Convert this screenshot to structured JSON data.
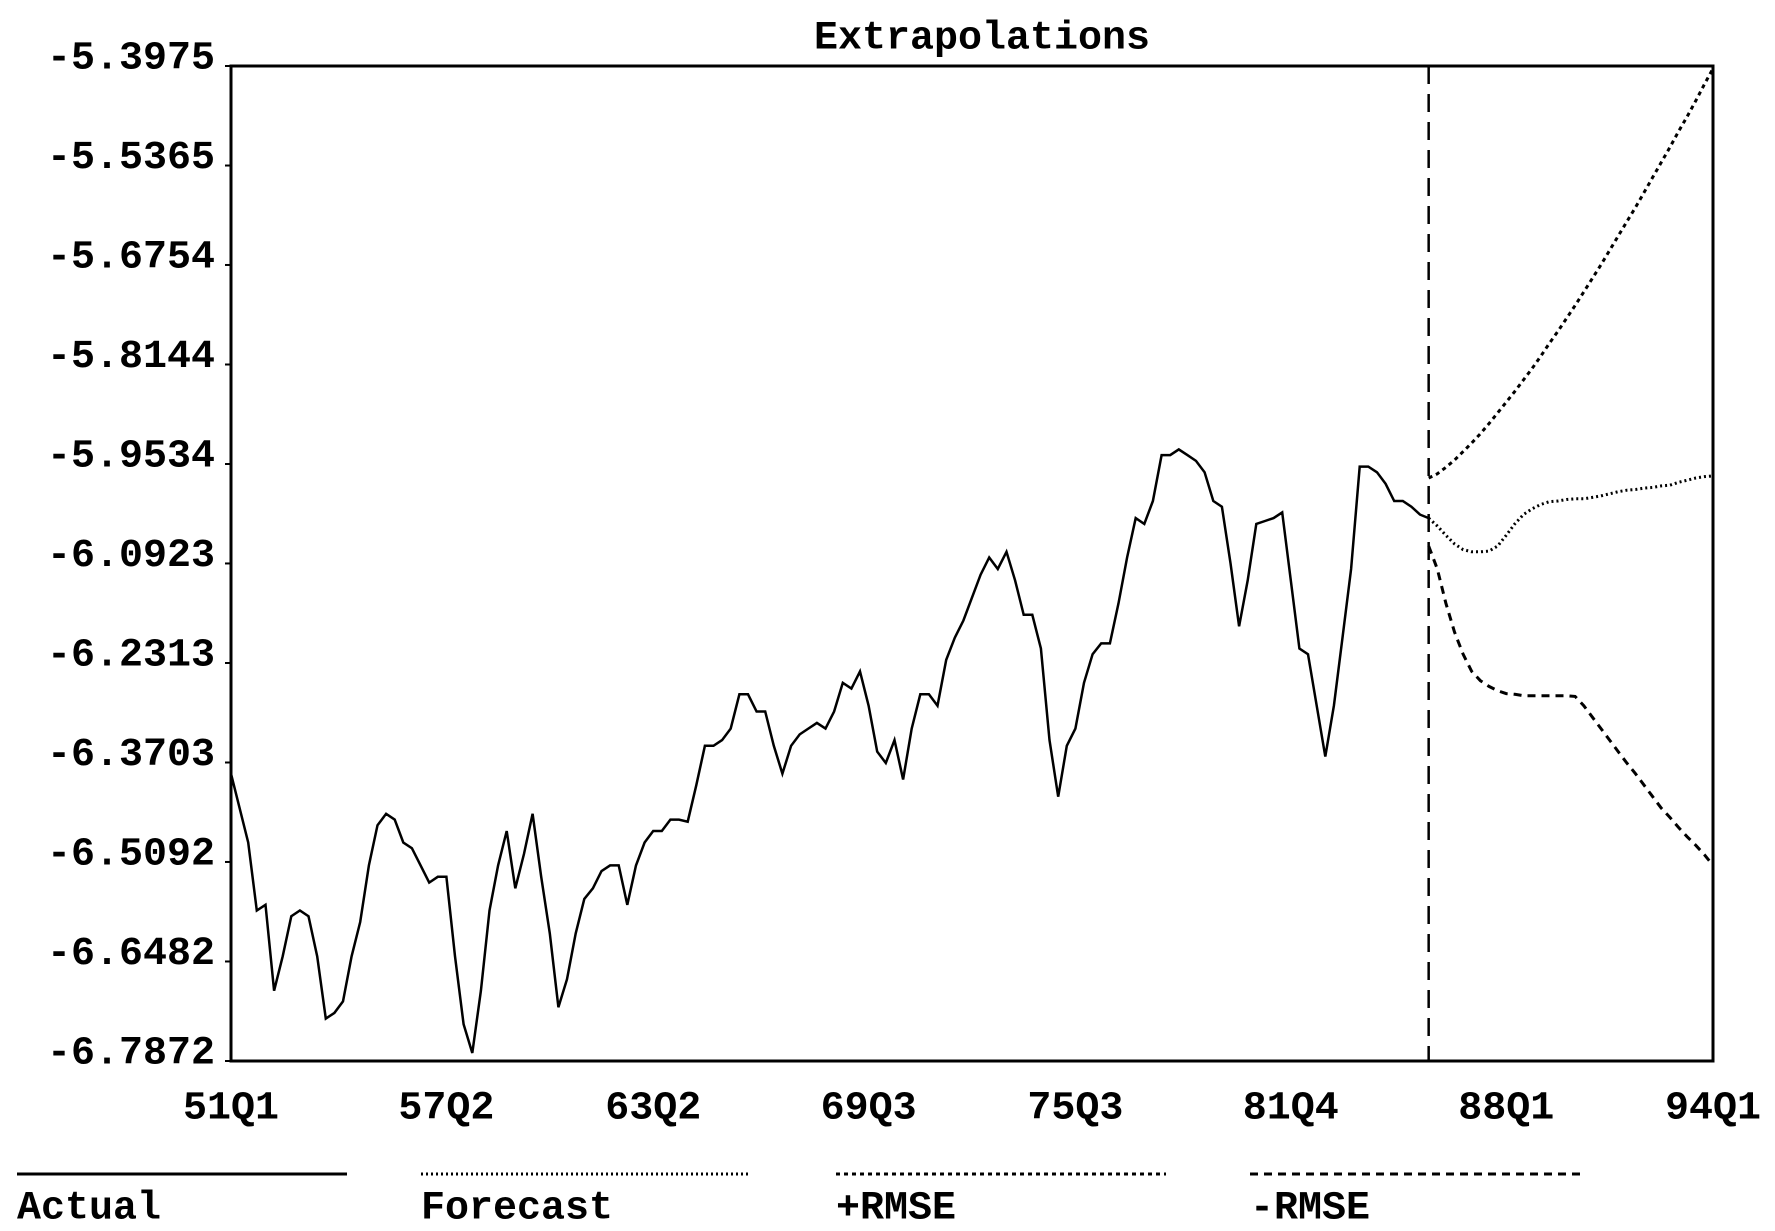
{
  "chart_data": {
    "type": "line",
    "title": "Extrapolations",
    "categories": [
      "51Q1",
      null,
      null,
      null,
      null,
      null,
      null,
      null,
      null,
      null,
      null,
      null,
      null,
      null,
      null,
      null,
      null,
      null,
      null,
      null,
      null,
      null,
      null,
      null,
      null,
      "57Q2",
      null,
      null,
      null,
      null,
      null,
      null,
      null,
      null,
      null,
      null,
      null,
      null,
      null,
      null,
      null,
      null,
      null,
      null,
      null,
      null,
      null,
      null,
      null,
      "63Q2",
      null,
      null,
      null,
      null,
      null,
      null,
      null,
      null,
      null,
      null,
      null,
      null,
      null,
      null,
      null,
      null,
      null,
      null,
      null,
      null,
      null,
      null,
      null,
      null,
      "69Q3",
      null,
      null,
      null,
      null,
      null,
      null,
      null,
      null,
      null,
      null,
      null,
      null,
      null,
      null,
      null,
      null,
      null,
      null,
      null,
      null,
      null,
      null,
      null,
      "75Q3",
      null,
      null,
      null,
      null,
      null,
      null,
      null,
      null,
      null,
      null,
      null,
      null,
      null,
      null,
      null,
      null,
      null,
      null,
      null,
      null,
      null,
      null,
      null,
      null,
      "81Q4",
      null,
      null,
      null,
      null,
      null,
      null,
      null,
      null,
      null,
      null,
      null,
      null,
      null,
      null,
      null,
      null,
      null,
      null,
      null,
      null,
      null,
      null,
      null,
      null,
      "88Q1",
      null,
      null,
      null,
      null,
      null,
      null,
      null,
      null,
      null,
      null,
      null,
      null,
      null,
      null,
      null,
      null,
      null,
      null,
      null,
      null,
      null,
      null,
      null,
      "94Q1"
    ],
    "series": [
      {
        "name": "Actual",
        "color": "#000000",
        "dash": "solid",
        "values": [
          -6.386,
          -6.434,
          -6.482,
          -6.577,
          -6.569,
          -6.689,
          -6.641,
          -6.585,
          -6.577,
          -6.585,
          -6.641,
          -6.728,
          -6.72,
          -6.704,
          -6.641,
          -6.593,
          -6.514,
          -6.458,
          -6.442,
          -6.45,
          -6.482,
          -6.49,
          -6.514,
          -6.538,
          -6.53,
          -6.53,
          -6.641,
          -6.736,
          -6.776,
          -6.689,
          -6.577,
          -6.514,
          -6.466,
          -6.546,
          -6.498,
          -6.442,
          -6.53,
          -6.609,
          -6.712,
          -6.673,
          -6.609,
          -6.561,
          -6.546,
          -6.522,
          -6.514,
          -6.514,
          -6.569,
          -6.514,
          -6.482,
          -6.466,
          -6.466,
          -6.45,
          -6.45,
          -6.453,
          -6.402,
          -6.347,
          -6.347,
          -6.339,
          -6.323,
          -6.275,
          -6.275,
          -6.299,
          -6.299,
          -6.347,
          -6.386,
          -6.347,
          -6.331,
          -6.323,
          -6.315,
          -6.323,
          -6.299,
          -6.259,
          -6.267,
          -6.243,
          -6.291,
          -6.355,
          -6.371,
          -6.339,
          -6.394,
          -6.323,
          -6.275,
          -6.275,
          -6.291,
          -6.227,
          -6.196,
          -6.172,
          -6.14,
          -6.108,
          -6.084,
          -6.1,
          -6.076,
          -6.116,
          -6.164,
          -6.164,
          -6.211,
          -6.339,
          -6.418,
          -6.347,
          -6.323,
          -6.259,
          -6.219,
          -6.204,
          -6.204,
          -6.148,
          -6.084,
          -6.029,
          -6.037,
          -6.005,
          -5.941,
          -5.941,
          -5.933,
          -5.941,
          -5.949,
          -5.965,
          -6.005,
          -6.013,
          -6.092,
          -6.18,
          -6.116,
          -6.037,
          -6.033,
          -6.029,
          -6.021,
          -6.116,
          -6.211,
          -6.219,
          -6.291,
          -6.362,
          -6.291,
          -6.196,
          -6.1,
          -5.957,
          -5.957,
          -5.965,
          -5.981,
          -6.005,
          -6.005,
          -6.013,
          -6.024,
          -6.029,
          null,
          null,
          null,
          null,
          null,
          null,
          null,
          null,
          null,
          null,
          null,
          null,
          null,
          null,
          null,
          null,
          null,
          null,
          null,
          null,
          null,
          null,
          null,
          null,
          null,
          null,
          null,
          null,
          null,
          null,
          null,
          null,
          null
        ]
      },
      {
        "name": "Forecast",
        "color": "#000000",
        "dash": "dotted",
        "values": [
          null,
          null,
          null,
          null,
          null,
          null,
          null,
          null,
          null,
          null,
          null,
          null,
          null,
          null,
          null,
          null,
          null,
          null,
          null,
          null,
          null,
          null,
          null,
          null,
          null,
          null,
          null,
          null,
          null,
          null,
          null,
          null,
          null,
          null,
          null,
          null,
          null,
          null,
          null,
          null,
          null,
          null,
          null,
          null,
          null,
          null,
          null,
          null,
          null,
          null,
          null,
          null,
          null,
          null,
          null,
          null,
          null,
          null,
          null,
          null,
          null,
          null,
          null,
          null,
          null,
          null,
          null,
          null,
          null,
          null,
          null,
          null,
          null,
          null,
          null,
          null,
          null,
          null,
          null,
          null,
          null,
          null,
          null,
          null,
          null,
          null,
          null,
          null,
          null,
          null,
          null,
          null,
          null,
          null,
          null,
          null,
          null,
          null,
          null,
          null,
          null,
          null,
          null,
          null,
          null,
          null,
          null,
          null,
          null,
          null,
          null,
          null,
          null,
          null,
          null,
          null,
          null,
          null,
          null,
          null,
          null,
          null,
          null,
          null,
          null,
          null,
          null,
          null,
          null,
          null,
          null,
          null,
          null,
          null,
          null,
          null,
          null,
          null,
          null,
          -6.029,
          -6.04,
          -6.053,
          -6.065,
          -6.073,
          -6.076,
          -6.076,
          -6.075,
          -6.068,
          -6.053,
          -6.037,
          -6.024,
          -6.016,
          -6.01,
          -6.006,
          -6.005,
          -6.003,
          -6.002,
          -6.002,
          -6.0,
          -5.998,
          -5.995,
          -5.992,
          -5.99,
          -5.989,
          -5.987,
          -5.986,
          -5.984,
          -5.983,
          -5.979,
          -5.976,
          -5.973,
          -5.971,
          -5.97
        ]
      },
      {
        "name": "+RMSE",
        "color": "#000000",
        "dash": "dashed",
        "values": [
          null,
          null,
          null,
          null,
          null,
          null,
          null,
          null,
          null,
          null,
          null,
          null,
          null,
          null,
          null,
          null,
          null,
          null,
          null,
          null,
          null,
          null,
          null,
          null,
          null,
          null,
          null,
          null,
          null,
          null,
          null,
          null,
          null,
          null,
          null,
          null,
          null,
          null,
          null,
          null,
          null,
          null,
          null,
          null,
          null,
          null,
          null,
          null,
          null,
          null,
          null,
          null,
          null,
          null,
          null,
          null,
          null,
          null,
          null,
          null,
          null,
          null,
          null,
          null,
          null,
          null,
          null,
          null,
          null,
          null,
          null,
          null,
          null,
          null,
          null,
          null,
          null,
          null,
          null,
          null,
          null,
          null,
          null,
          null,
          null,
          null,
          null,
          null,
          null,
          null,
          null,
          null,
          null,
          null,
          null,
          null,
          null,
          null,
          null,
          null,
          null,
          null,
          null,
          null,
          null,
          null,
          null,
          null,
          null,
          null,
          null,
          null,
          null,
          null,
          null,
          null,
          null,
          null,
          null,
          null,
          null,
          null,
          null,
          null,
          null,
          null,
          null,
          null,
          null,
          null,
          null,
          null,
          null,
          null,
          null,
          null,
          null,
          null,
          null,
          -5.973,
          -5.967,
          -5.958,
          -5.948,
          -5.936,
          -5.924,
          -5.911,
          -5.897,
          -5.882,
          -5.867,
          -5.852,
          -5.836,
          -5.82,
          -5.803,
          -5.785,
          -5.768,
          -5.75,
          -5.732,
          -5.713,
          -5.694,
          -5.675,
          -5.655,
          -5.635,
          -5.615,
          -5.595,
          -5.574,
          -5.553,
          -5.532,
          -5.511,
          -5.489,
          -5.468,
          -5.446,
          -5.423,
          -5.401
        ]
      },
      {
        "name": "-RMSE",
        "color": "#000000",
        "dash": "long-dashed",
        "values": [
          null,
          null,
          null,
          null,
          null,
          null,
          null,
          null,
          null,
          null,
          null,
          null,
          null,
          null,
          null,
          null,
          null,
          null,
          null,
          null,
          null,
          null,
          null,
          null,
          null,
          null,
          null,
          null,
          null,
          null,
          null,
          null,
          null,
          null,
          null,
          null,
          null,
          null,
          null,
          null,
          null,
          null,
          null,
          null,
          null,
          null,
          null,
          null,
          null,
          null,
          null,
          null,
          null,
          null,
          null,
          null,
          null,
          null,
          null,
          null,
          null,
          null,
          null,
          null,
          null,
          null,
          null,
          null,
          null,
          null,
          null,
          null,
          null,
          null,
          null,
          null,
          null,
          null,
          null,
          null,
          null,
          null,
          null,
          null,
          null,
          null,
          null,
          null,
          null,
          null,
          null,
          null,
          null,
          null,
          null,
          null,
          null,
          null,
          null,
          null,
          null,
          null,
          null,
          null,
          null,
          null,
          null,
          null,
          null,
          null,
          null,
          null,
          null,
          null,
          null,
          null,
          null,
          null,
          null,
          null,
          null,
          null,
          null,
          null,
          null,
          null,
          null,
          null,
          null,
          null,
          null,
          null,
          null,
          null,
          null,
          null,
          null,
          null,
          null,
          -6.068,
          -6.1,
          -6.148,
          -6.188,
          -6.219,
          -6.243,
          -6.256,
          -6.264,
          -6.27,
          -6.274,
          -6.275,
          -6.277,
          -6.277,
          -6.277,
          -6.277,
          -6.277,
          -6.277,
          -6.278,
          -6.291,
          -6.307,
          -6.323,
          -6.339,
          -6.355,
          -6.371,
          -6.386,
          -6.402,
          -6.418,
          -6.434,
          -6.447,
          -6.461,
          -6.474,
          -6.486,
          -6.499,
          -6.514
        ]
      }
    ],
    "ylim": [
      -6.7872,
      -5.3975
    ],
    "yticks": [
      -5.3975,
      -5.5365,
      -5.6754,
      -5.8144,
      -5.9534,
      -6.0923,
      -6.2313,
      -6.3703,
      -6.5092,
      -6.6482,
      -6.7872
    ],
    "grid": false
  }
}
